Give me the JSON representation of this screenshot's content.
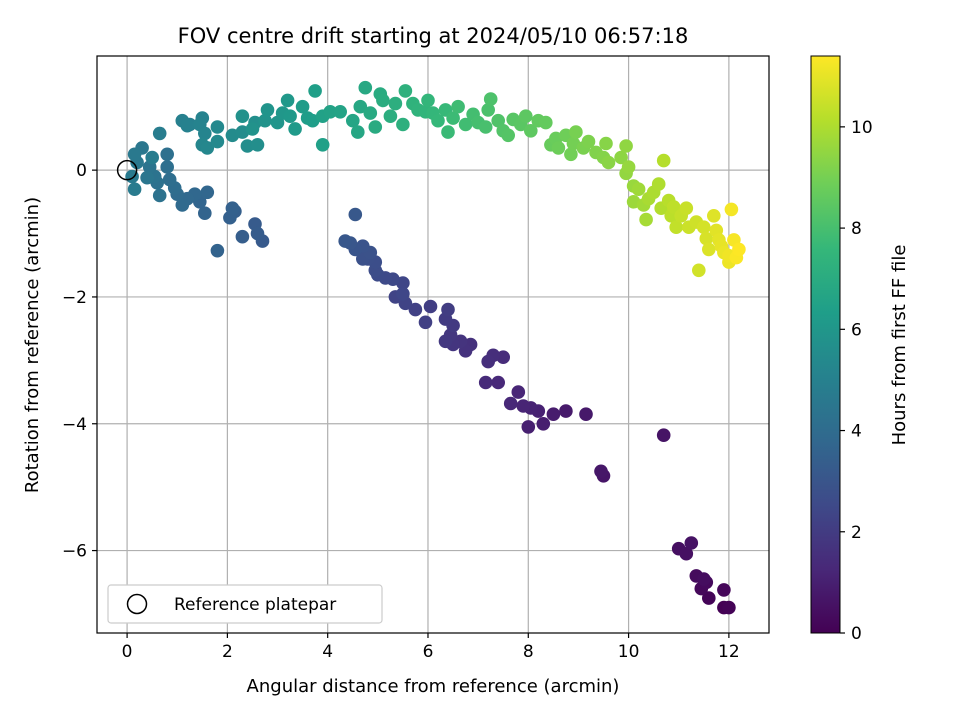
{
  "chart_data": {
    "type": "scatter",
    "title": "FOV centre drift starting at 2024/05/10 06:57:18",
    "xlabel": "Angular distance from reference (arcmin)",
    "ylabel": "Rotation from reference (arcmin)",
    "xlim": [
      -0.6,
      12.8
    ],
    "ylim": [
      -7.3,
      1.8
    ],
    "xticks": [
      0,
      2,
      4,
      6,
      8,
      10,
      12
    ],
    "yticks": [
      0,
      -2,
      -4,
      -6
    ],
    "grid": true,
    "legend": {
      "placement": "lower-left",
      "entries": [
        "Reference platepar"
      ]
    },
    "reference_point": {
      "x": 0,
      "y": 0
    },
    "colorbar": {
      "label": "Hours from first FF file",
      "range": [
        0,
        11.4
      ],
      "ticks": [
        0,
        2,
        4,
        6,
        8,
        10
      ],
      "colormap": "viridis",
      "colors": [
        "#440154",
        "#482878",
        "#3e4a89",
        "#31688e",
        "#26828e",
        "#1f9e89",
        "#35b779",
        "#6ece58",
        "#b5de2b",
        "#fde725"
      ]
    },
    "series": [
      {
        "points": [
          [
            11.9,
            -6.9
          ],
          [
            12.0,
            -6.9
          ],
          [
            11.6,
            -6.75
          ],
          [
            11.9,
            -6.62
          ],
          [
            11.45,
            -6.6
          ],
          [
            11.55,
            -6.5
          ],
          [
            11.35,
            -6.4
          ],
          [
            11.5,
            -6.45
          ],
          [
            11.0,
            -5.97
          ],
          [
            11.15,
            -6.05
          ],
          [
            11.25,
            -5.88
          ],
          [
            10.7,
            -4.18
          ],
          [
            9.5,
            -4.82
          ],
          [
            9.45,
            -4.75
          ],
          [
            9.15,
            -3.85
          ],
          [
            8.75,
            -3.8
          ],
          [
            8.5,
            -3.85
          ],
          [
            8.3,
            -4.0
          ],
          [
            8.0,
            -4.05
          ],
          [
            8.2,
            -3.8
          ],
          [
            8.05,
            -3.75
          ],
          [
            7.9,
            -3.72
          ],
          [
            7.8,
            -3.5
          ],
          [
            7.65,
            -3.68
          ],
          [
            7.4,
            -3.35
          ],
          [
            7.15,
            -3.35
          ],
          [
            7.5,
            -2.95
          ],
          [
            7.3,
            -2.92
          ],
          [
            7.2,
            -3.02
          ],
          [
            6.85,
            -2.75
          ],
          [
            6.75,
            -2.85
          ],
          [
            6.65,
            -2.7
          ],
          [
            6.5,
            -2.75
          ],
          [
            6.45,
            -2.6
          ],
          [
            6.35,
            -2.7
          ],
          [
            6.5,
            -2.45
          ],
          [
            6.35,
            -2.35
          ],
          [
            6.4,
            -2.2
          ],
          [
            6.05,
            -2.15
          ],
          [
            5.95,
            -2.4
          ],
          [
            5.75,
            -2.2
          ],
          [
            5.55,
            -2.1
          ],
          [
            5.35,
            -2.0
          ],
          [
            5.5,
            -1.78
          ],
          [
            5.5,
            -1.95
          ],
          [
            5.3,
            -1.72
          ],
          [
            5.15,
            -1.7
          ],
          [
            5.0,
            -1.65
          ],
          [
            4.95,
            -1.58
          ],
          [
            4.95,
            -1.45
          ],
          [
            4.8,
            -1.4
          ],
          [
            4.7,
            -1.4
          ],
          [
            4.85,
            -1.3
          ],
          [
            4.7,
            -1.2
          ],
          [
            4.55,
            -1.25
          ],
          [
            4.45,
            -1.15
          ],
          [
            4.35,
            -1.12
          ],
          [
            4.55,
            -0.7
          ],
          [
            2.7,
            -1.12
          ],
          [
            2.55,
            -0.85
          ],
          [
            2.6,
            -1.0
          ],
          [
            2.3,
            -1.05
          ],
          [
            2.15,
            -0.65
          ],
          [
            2.05,
            -0.75
          ],
          [
            2.1,
            -0.6
          ],
          [
            1.8,
            -1.27
          ],
          [
            1.55,
            -0.68
          ],
          [
            1.45,
            -0.5
          ],
          [
            1.6,
            -0.35
          ],
          [
            1.35,
            -0.38
          ],
          [
            1.2,
            -0.45
          ],
          [
            1.1,
            -0.55
          ],
          [
            1.0,
            -0.38
          ],
          [
            0.95,
            -0.28
          ],
          [
            0.85,
            -0.15
          ],
          [
            0.8,
            0.05
          ],
          [
            0.8,
            0.25
          ],
          [
            0.6,
            -0.2
          ],
          [
            0.65,
            -0.4
          ],
          [
            0.55,
            -0.1
          ],
          [
            0.45,
            0.05
          ],
          [
            0.4,
            -0.12
          ],
          [
            0.3,
            0.35
          ],
          [
            0.2,
            0.12
          ],
          [
            0.15,
            0.25
          ],
          [
            0.1,
            -0.1
          ],
          [
            0.15,
            -0.3
          ],
          [
            0.5,
            0.2
          ],
          [
            0.65,
            0.58
          ],
          [
            1.25,
            0.72
          ],
          [
            1.1,
            0.78
          ],
          [
            1.2,
            0.7
          ],
          [
            1.5,
            0.82
          ],
          [
            1.45,
            0.72
          ],
          [
            1.55,
            0.58
          ],
          [
            1.5,
            0.4
          ],
          [
            1.6,
            0.35
          ],
          [
            1.8,
            0.68
          ],
          [
            1.8,
            0.45
          ],
          [
            2.1,
            0.55
          ],
          [
            2.3,
            0.6
          ],
          [
            2.4,
            0.38
          ],
          [
            2.6,
            0.4
          ],
          [
            2.55,
            0.75
          ],
          [
            2.3,
            0.85
          ],
          [
            2.5,
            0.65
          ],
          [
            2.75,
            0.78
          ],
          [
            2.8,
            0.95
          ],
          [
            3.0,
            0.75
          ],
          [
            3.1,
            0.9
          ],
          [
            3.2,
            1.1
          ],
          [
            3.25,
            0.85
          ],
          [
            3.35,
            0.65
          ],
          [
            3.5,
            1.0
          ],
          [
            3.6,
            0.82
          ],
          [
            3.7,
            0.78
          ],
          [
            3.75,
            1.25
          ],
          [
            3.9,
            0.4
          ],
          [
            3.9,
            0.85
          ],
          [
            4.05,
            0.92
          ],
          [
            4.25,
            0.92
          ],
          [
            4.5,
            0.78
          ],
          [
            4.6,
            0.6
          ],
          [
            4.65,
            1.0
          ],
          [
            4.75,
            1.3
          ],
          [
            4.85,
            0.9
          ],
          [
            4.95,
            0.68
          ],
          [
            5.05,
            1.2
          ],
          [
            5.1,
            1.1
          ],
          [
            5.25,
            0.85
          ],
          [
            5.35,
            1.05
          ],
          [
            5.5,
            0.72
          ],
          [
            5.55,
            1.25
          ],
          [
            5.7,
            1.05
          ],
          [
            5.8,
            0.95
          ],
          [
            5.95,
            0.92
          ],
          [
            6.0,
            1.1
          ],
          [
            6.1,
            0.9
          ],
          [
            6.2,
            0.78
          ],
          [
            6.35,
            0.95
          ],
          [
            6.4,
            0.6
          ],
          [
            6.5,
            0.82
          ],
          [
            6.6,
            1.0
          ],
          [
            6.75,
            0.72
          ],
          [
            6.9,
            0.88
          ],
          [
            7.0,
            0.75
          ],
          [
            7.15,
            0.68
          ],
          [
            7.2,
            0.95
          ],
          [
            7.25,
            1.12
          ],
          [
            7.4,
            0.78
          ],
          [
            7.5,
            0.62
          ],
          [
            7.6,
            0.55
          ],
          [
            7.7,
            0.8
          ],
          [
            7.85,
            0.72
          ],
          [
            7.95,
            0.85
          ],
          [
            8.05,
            0.62
          ],
          [
            8.2,
            0.78
          ],
          [
            8.35,
            0.75
          ],
          [
            8.45,
            0.4
          ],
          [
            8.55,
            0.5
          ],
          [
            8.6,
            0.35
          ],
          [
            8.75,
            0.55
          ],
          [
            8.85,
            0.25
          ],
          [
            8.9,
            0.42
          ],
          [
            8.95,
            0.6
          ],
          [
            9.1,
            0.35
          ],
          [
            9.2,
            0.45
          ],
          [
            9.35,
            0.28
          ],
          [
            9.5,
            0.2
          ],
          [
            9.55,
            0.42
          ],
          [
            9.6,
            0.12
          ],
          [
            9.85,
            0.2
          ],
          [
            9.95,
            0.38
          ],
          [
            9.95,
            -0.05
          ],
          [
            10.0,
            0.05
          ],
          [
            10.1,
            -0.25
          ],
          [
            10.1,
            -0.5
          ],
          [
            10.2,
            -0.3
          ],
          [
            10.3,
            -0.55
          ],
          [
            10.35,
            -0.78
          ],
          [
            10.4,
            -0.45
          ],
          [
            10.5,
            -0.35
          ],
          [
            10.6,
            -0.22
          ],
          [
            10.65,
            -0.6
          ],
          [
            10.7,
            0.15
          ],
          [
            10.8,
            -0.48
          ],
          [
            10.85,
            -0.72
          ],
          [
            10.9,
            -0.58
          ],
          [
            10.95,
            -0.9
          ],
          [
            11.05,
            -0.72
          ],
          [
            11.15,
            -0.6
          ],
          [
            11.2,
            -0.9
          ],
          [
            11.35,
            -0.82
          ],
          [
            11.4,
            -1.58
          ],
          [
            11.5,
            -0.9
          ],
          [
            11.55,
            -1.08
          ],
          [
            11.6,
            -1.25
          ],
          [
            11.7,
            -0.72
          ],
          [
            11.75,
            -0.95
          ],
          [
            11.8,
            -1.1
          ],
          [
            11.85,
            -1.2
          ],
          [
            11.9,
            -1.3
          ],
          [
            12.0,
            -1.45
          ],
          [
            12.0,
            -1.35
          ],
          [
            12.05,
            -0.62
          ],
          [
            12.1,
            -1.1
          ],
          [
            12.15,
            -1.38
          ],
          [
            12.2,
            -1.25
          ]
        ]
      }
    ]
  }
}
